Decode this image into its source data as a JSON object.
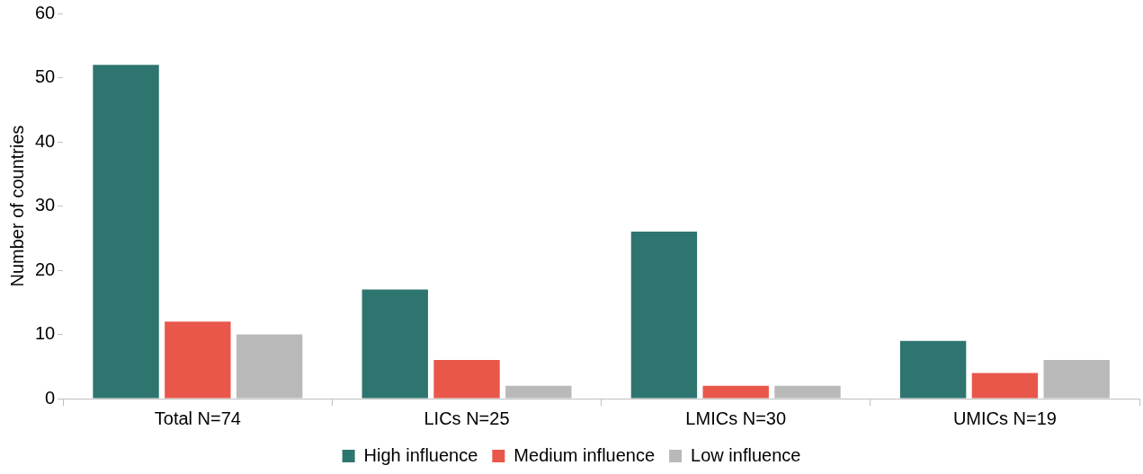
{
  "chart_data": {
    "type": "bar",
    "ylabel": "Number of countries",
    "categories": [
      "Total N=74",
      "LICs N=25",
      "LMICs N=30",
      "UMICs N=19"
    ],
    "series": [
      {
        "name": "High influence",
        "color": "#2e7570",
        "values": [
          52,
          17,
          26,
          9
        ]
      },
      {
        "name": "Medium influence",
        "color": "#e8574a",
        "values": [
          12,
          6,
          2,
          4
        ]
      },
      {
        "name": "Low influence",
        "color": "#b9b9b9",
        "values": [
          10,
          2,
          2,
          6
        ]
      }
    ],
    "ylim": [
      0,
      60
    ],
    "yticks": [
      0,
      10,
      20,
      30,
      40,
      50,
      60
    ],
    "grid": false,
    "legend": "bottom"
  }
}
